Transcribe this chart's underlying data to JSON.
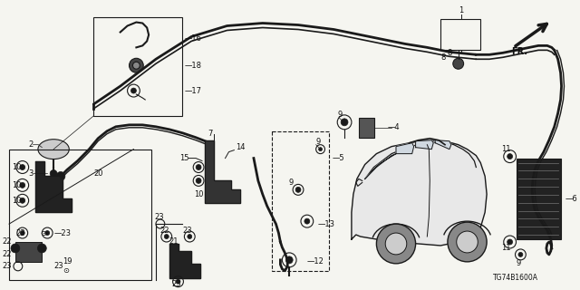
{
  "background_color": "#f5f5f0",
  "diagram_id": "TG74B1600A",
  "figsize": [
    6.4,
    3.2
  ],
  "dpi": 100,
  "line_color": "#1a1a1a",
  "label_fontsize": 6.0,
  "label_color": "#111111",
  "wire_color": "#1a1a1a",
  "part_fill": "#1a1a1a"
}
